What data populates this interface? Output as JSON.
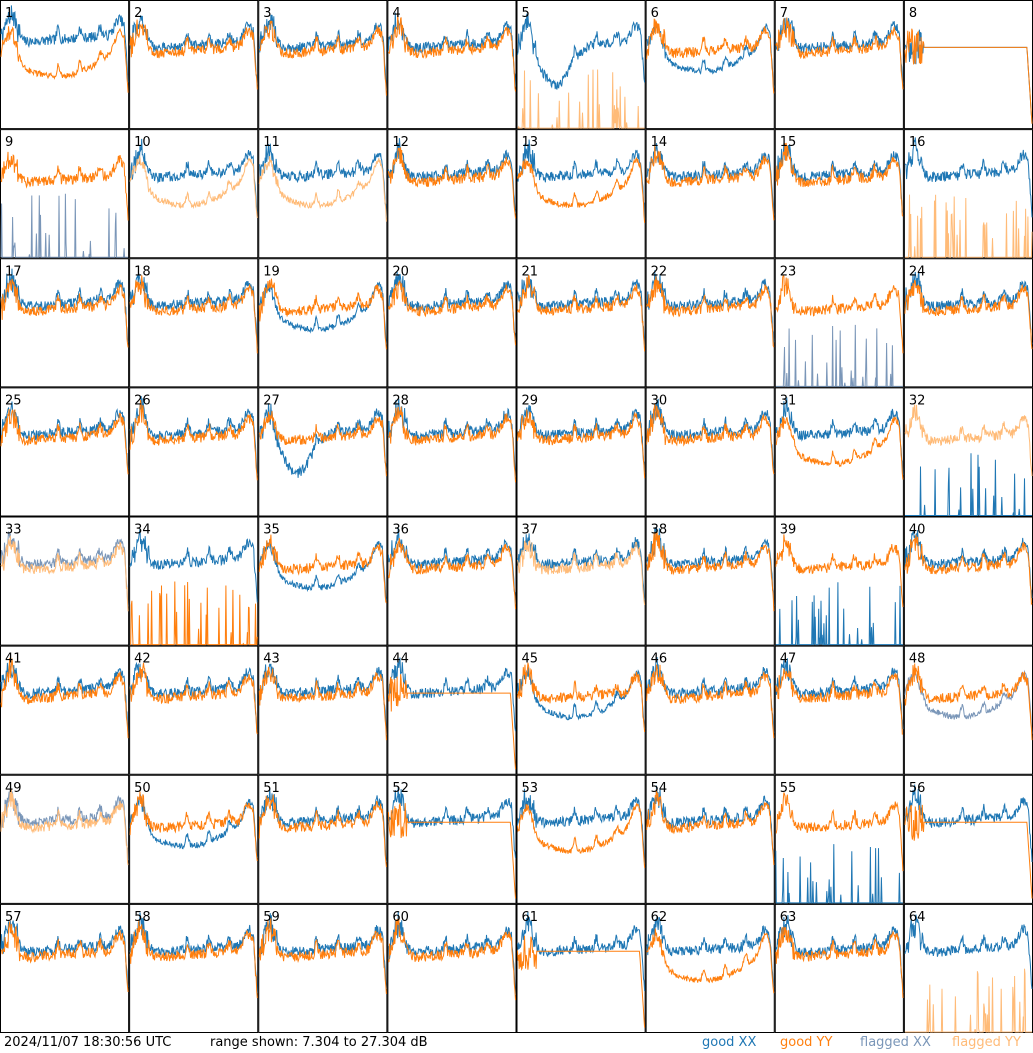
{
  "chart_data": {
    "type": "line",
    "panels": 64,
    "grid": {
      "rows": 8,
      "cols": 8
    },
    "panel_labels": [
      "1",
      "2",
      "3",
      "4",
      "5",
      "6",
      "7",
      "8",
      "9",
      "10",
      "11",
      "12",
      "13",
      "14",
      "15",
      "16",
      "17",
      "18",
      "19",
      "20",
      "21",
      "22",
      "23",
      "24",
      "25",
      "26",
      "27",
      "28",
      "29",
      "30",
      "31",
      "32",
      "33",
      "34",
      "35",
      "36",
      "37",
      "38",
      "39",
      "40",
      "41",
      "42",
      "43",
      "44",
      "45",
      "46",
      "47",
      "48",
      "49",
      "50",
      "51",
      "52",
      "53",
      "54",
      "55",
      "56",
      "57",
      "58",
      "59",
      "60",
      "61",
      "62",
      "63",
      "64"
    ],
    "ylim": [
      7.304,
      27.304
    ],
    "yunit": "dB",
    "series_styles": {
      "good_xx": "#1f77b4",
      "good_yy": "#ff7f0e",
      "flagged_xx": "#7a96b8",
      "flagged_yy": "#ffbb78"
    },
    "series_status": [
      {
        "xx": "good",
        "yy": "good",
        "xx_shape": "normal_high",
        "yy_shape": "sag"
      },
      {
        "xx": "good",
        "yy": "good",
        "xx_shape": "normal",
        "yy_shape": "normal"
      },
      {
        "xx": "good",
        "yy": "good",
        "xx_shape": "normal",
        "yy_shape": "normal"
      },
      {
        "xx": "good",
        "yy": "good",
        "xx_shape": "normal",
        "yy_shape": "normal"
      },
      {
        "xx": "good",
        "yy": "flagged",
        "xx_shape": "dip",
        "yy_shape": "spikes_low"
      },
      {
        "xx": "good",
        "yy": "good",
        "xx_shape": "sag",
        "yy_shape": "normal"
      },
      {
        "xx": "good",
        "yy": "good",
        "xx_shape": "normal",
        "yy_shape": "normal"
      },
      {
        "xx": "good",
        "yy": "good",
        "xx_shape": "flat",
        "yy_shape": "flat"
      },
      {
        "xx": "flagged",
        "yy": "good",
        "xx_shape": "spikes_low",
        "yy_shape": "normal"
      },
      {
        "xx": "good",
        "yy": "flagged",
        "xx_shape": "normal",
        "yy_shape": "sag"
      },
      {
        "xx": "good",
        "yy": "flagged",
        "xx_shape": "normal",
        "yy_shape": "sag"
      },
      {
        "xx": "good",
        "yy": "good",
        "xx_shape": "normal",
        "yy_shape": "normal"
      },
      {
        "xx": "good",
        "yy": "good",
        "xx_shape": "normal",
        "yy_shape": "sag"
      },
      {
        "xx": "good",
        "yy": "good",
        "xx_shape": "normal",
        "yy_shape": "normal"
      },
      {
        "xx": "good",
        "yy": "good",
        "xx_shape": "normal",
        "yy_shape": "normal"
      },
      {
        "xx": "good",
        "yy": "flagged",
        "xx_shape": "normal",
        "yy_shape": "spikes_low"
      },
      {
        "xx": "good",
        "yy": "good",
        "xx_shape": "normal",
        "yy_shape": "normal"
      },
      {
        "xx": "good",
        "yy": "good",
        "xx_shape": "normal",
        "yy_shape": "normal"
      },
      {
        "xx": "good",
        "yy": "good",
        "xx_shape": "sag",
        "yy_shape": "normal"
      },
      {
        "xx": "good",
        "yy": "good",
        "xx_shape": "normal",
        "yy_shape": "normal"
      },
      {
        "xx": "good",
        "yy": "good",
        "xx_shape": "normal",
        "yy_shape": "normal"
      },
      {
        "xx": "good",
        "yy": "good",
        "xx_shape": "normal",
        "yy_shape": "normal"
      },
      {
        "xx": "flagged",
        "yy": "good",
        "xx_shape": "spikes_low",
        "yy_shape": "normal"
      },
      {
        "xx": "good",
        "yy": "good",
        "xx_shape": "normal",
        "yy_shape": "normal"
      },
      {
        "xx": "good",
        "yy": "good",
        "xx_shape": "normal",
        "yy_shape": "normal"
      },
      {
        "xx": "good",
        "yy": "good",
        "xx_shape": "normal",
        "yy_shape": "normal"
      },
      {
        "xx": "good",
        "yy": "good",
        "xx_shape": "dip",
        "yy_shape": "normal"
      },
      {
        "xx": "good",
        "yy": "good",
        "xx_shape": "normal",
        "yy_shape": "normal"
      },
      {
        "xx": "good",
        "yy": "good",
        "xx_shape": "normal",
        "yy_shape": "normal"
      },
      {
        "xx": "good",
        "yy": "good",
        "xx_shape": "normal",
        "yy_shape": "normal"
      },
      {
        "xx": "good",
        "yy": "good",
        "xx_shape": "normal",
        "yy_shape": "sag"
      },
      {
        "xx": "good",
        "yy": "flagged",
        "xx_shape": "spikes_low",
        "yy_shape": "normal"
      },
      {
        "xx": "flagged",
        "yy": "flagged",
        "xx_shape": "normal",
        "yy_shape": "normal"
      },
      {
        "xx": "good",
        "yy": "good",
        "xx_shape": "normal",
        "yy_shape": "spikes_low"
      },
      {
        "xx": "good",
        "yy": "good",
        "xx_shape": "sag",
        "yy_shape": "normal"
      },
      {
        "xx": "good",
        "yy": "good",
        "xx_shape": "normal",
        "yy_shape": "normal"
      },
      {
        "xx": "good",
        "yy": "flagged",
        "xx_shape": "normal",
        "yy_shape": "normal"
      },
      {
        "xx": "good",
        "yy": "good",
        "xx_shape": "normal",
        "yy_shape": "normal"
      },
      {
        "xx": "good",
        "yy": "good",
        "xx_shape": "spikes_low",
        "yy_shape": "normal"
      },
      {
        "xx": "good",
        "yy": "good",
        "xx_shape": "normal",
        "yy_shape": "normal"
      },
      {
        "xx": "good",
        "yy": "good",
        "xx_shape": "normal",
        "yy_shape": "normal"
      },
      {
        "xx": "good",
        "yy": "good",
        "xx_shape": "normal",
        "yy_shape": "normal"
      },
      {
        "xx": "good",
        "yy": "good",
        "xx_shape": "normal",
        "yy_shape": "normal"
      },
      {
        "xx": "good",
        "yy": "good",
        "xx_shape": "normal",
        "yy_shape": "flat"
      },
      {
        "xx": "good",
        "yy": "good",
        "xx_shape": "sag",
        "yy_shape": "normal"
      },
      {
        "xx": "good",
        "yy": "good",
        "xx_shape": "normal",
        "yy_shape": "normal"
      },
      {
        "xx": "good",
        "yy": "good",
        "xx_shape": "normal",
        "yy_shape": "normal"
      },
      {
        "xx": "flagged",
        "yy": "good",
        "xx_shape": "sag",
        "yy_shape": "normal"
      },
      {
        "xx": "flagged",
        "yy": "flagged",
        "xx_shape": "normal",
        "yy_shape": "normal"
      },
      {
        "xx": "good",
        "yy": "good",
        "xx_shape": "sag",
        "yy_shape": "normal"
      },
      {
        "xx": "good",
        "yy": "good",
        "xx_shape": "normal",
        "yy_shape": "normal"
      },
      {
        "xx": "good",
        "yy": "good",
        "xx_shape": "normal",
        "yy_shape": "flat"
      },
      {
        "xx": "good",
        "yy": "good",
        "xx_shape": "normal",
        "yy_shape": "sag"
      },
      {
        "xx": "good",
        "yy": "good",
        "xx_shape": "normal",
        "yy_shape": "normal"
      },
      {
        "xx": "good",
        "yy": "good",
        "xx_shape": "spikes_low",
        "yy_shape": "normal"
      },
      {
        "xx": "good",
        "yy": "good",
        "xx_shape": "normal",
        "yy_shape": "flat"
      },
      {
        "xx": "good",
        "yy": "good",
        "xx_shape": "normal",
        "yy_shape": "normal"
      },
      {
        "xx": "good",
        "yy": "good",
        "xx_shape": "normal",
        "yy_shape": "normal"
      },
      {
        "xx": "good",
        "yy": "good",
        "xx_shape": "normal",
        "yy_shape": "normal"
      },
      {
        "xx": "good",
        "yy": "good",
        "xx_shape": "normal",
        "yy_shape": "normal"
      },
      {
        "xx": "good",
        "yy": "good",
        "xx_shape": "normal",
        "yy_shape": "flat"
      },
      {
        "xx": "good",
        "yy": "good",
        "xx_shape": "normal",
        "yy_shape": "sag"
      },
      {
        "xx": "good",
        "yy": "good",
        "xx_shape": "normal",
        "yy_shape": "normal"
      },
      {
        "xx": "good",
        "yy": "flagged",
        "xx_shape": "normal",
        "yy_shape": "spikes_low"
      }
    ]
  },
  "footer": {
    "timestamp": "2024/11/07 18:30:56 UTC",
    "range_text": "range shown: 7.304 to 27.304 dB",
    "legend": {
      "good_xx": "good XX",
      "good_yy": "good YY",
      "flagged_xx": "flagged XX",
      "flagged_yy": "flagged YY"
    }
  }
}
